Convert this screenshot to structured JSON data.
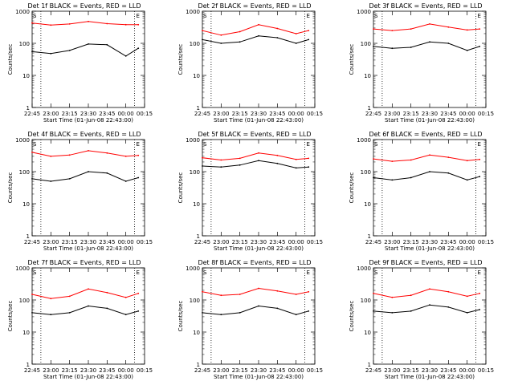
{
  "chart_data": [
    {
      "type": "line",
      "title": "Det 1f BLACK = Events, RED = LLD",
      "ylabel": "Counts/sec",
      "xlabel": "Start Time (01-Jun-08 22:43:00)",
      "ylim": [
        1,
        1000
      ],
      "yscale": "log",
      "yticks": [
        "1",
        "10",
        "100",
        "1000"
      ],
      "xticks": [
        "22:45",
        "23:00",
        "23:15",
        "23:30",
        "23:45",
        "00:00",
        "00:15"
      ],
      "markers": [
        "S",
        "E"
      ],
      "series": [
        {
          "name": "Events",
          "color": "#000000",
          "x": [
            "22:45",
            "23:00",
            "23:15",
            "23:30",
            "23:45",
            "00:00",
            "00:10"
          ],
          "values": [
            55,
            48,
            60,
            95,
            90,
            40,
            70
          ]
        },
        {
          "name": "LLD",
          "color": "#ff0000",
          "x": [
            "22:45",
            "23:00",
            "23:15",
            "23:30",
            "23:45",
            "00:00",
            "00:10"
          ],
          "values": [
            430,
            370,
            400,
            480,
            410,
            380,
            380
          ]
        }
      ]
    },
    {
      "type": "line",
      "title": "Det 2f BLACK = Events, RED = LLD",
      "ylabel": "Counts/sec",
      "xlabel": "Start Time (01-Jun-08 22:43:00)",
      "ylim": [
        1,
        1000
      ],
      "yscale": "log",
      "yticks": [
        "1",
        "10",
        "100",
        "1000"
      ],
      "xticks": [
        "22:45",
        "23:00",
        "23:15",
        "23:30",
        "23:45",
        "00:00",
        "00:15"
      ],
      "markers": [
        "S",
        "E"
      ],
      "series": [
        {
          "name": "Events",
          "color": "#000000",
          "x": [
            "22:45",
            "23:00",
            "23:15",
            "23:30",
            "23:45",
            "00:00",
            "00:10"
          ],
          "values": [
            130,
            100,
            110,
            170,
            150,
            100,
            130
          ]
        },
        {
          "name": "LLD",
          "color": "#ff0000",
          "x": [
            "22:45",
            "23:00",
            "23:15",
            "23:30",
            "23:45",
            "00:00",
            "00:10"
          ],
          "values": [
            250,
            180,
            230,
            380,
            290,
            200,
            250
          ]
        }
      ]
    },
    {
      "type": "line",
      "title": "Det 3f BLACK = Events, RED = LLD",
      "ylabel": "Counts/sec",
      "xlabel": "Start Time (01-Jun-08 22:43:00)",
      "ylim": [
        1,
        1000
      ],
      "yscale": "log",
      "yticks": [
        "1",
        "10",
        "100",
        "1000"
      ],
      "xticks": [
        "22:45",
        "23:00",
        "23:15",
        "23:30",
        "23:45",
        "00:00",
        "00:15"
      ],
      "markers": [
        "S",
        "E"
      ],
      "series": [
        {
          "name": "Events",
          "color": "#000000",
          "x": [
            "22:45",
            "23:00",
            "23:15",
            "23:30",
            "23:45",
            "00:00",
            "00:10"
          ],
          "values": [
            80,
            70,
            75,
            110,
            100,
            60,
            80
          ]
        },
        {
          "name": "LLD",
          "color": "#ff0000",
          "x": [
            "22:45",
            "23:00",
            "23:15",
            "23:30",
            "23:45",
            "00:00",
            "00:10"
          ],
          "values": [
            280,
            250,
            280,
            400,
            320,
            260,
            280
          ]
        }
      ]
    },
    {
      "type": "line",
      "title": "Det 4f BLACK = Events, RED = LLD",
      "ylabel": "Counts/sec",
      "xlabel": "Start Time (01-Jun-08 22:43:00)",
      "ylim": [
        1,
        1000
      ],
      "yscale": "log",
      "yticks": [
        "1",
        "10",
        "100",
        "1000"
      ],
      "xticks": [
        "22:45",
        "23:00",
        "23:15",
        "23:30",
        "23:45",
        "00:00",
        "00:15"
      ],
      "markers": [
        "S",
        "E"
      ],
      "series": [
        {
          "name": "Events",
          "color": "#000000",
          "x": [
            "22:45",
            "23:00",
            "23:15",
            "23:30",
            "23:45",
            "00:00",
            "00:10"
          ],
          "values": [
            60,
            50,
            60,
            100,
            90,
            50,
            65
          ]
        },
        {
          "name": "LLD",
          "color": "#ff0000",
          "x": [
            "22:45",
            "23:00",
            "23:15",
            "23:30",
            "23:45",
            "00:00",
            "00:10"
          ],
          "values": [
            400,
            300,
            330,
            450,
            380,
            300,
            320
          ]
        }
      ]
    },
    {
      "type": "line",
      "title": "Det 5f BLACK = Events, RED = LLD",
      "ylabel": "Counts/sec",
      "xlabel": "Start Time (01-Jun-08 22:43:00)",
      "ylim": [
        1,
        1000
      ],
      "yscale": "log",
      "yticks": [
        "1",
        "10",
        "100",
        "1000"
      ],
      "xticks": [
        "22:45",
        "23:00",
        "23:15",
        "23:30",
        "23:45",
        "00:00",
        "00:15"
      ],
      "markers": [
        "S",
        "E"
      ],
      "series": [
        {
          "name": "Events",
          "color": "#000000",
          "x": [
            "22:45",
            "23:00",
            "23:15",
            "23:30",
            "23:45",
            "00:00",
            "00:10"
          ],
          "values": [
            150,
            140,
            160,
            220,
            180,
            130,
            140
          ]
        },
        {
          "name": "LLD",
          "color": "#ff0000",
          "x": [
            "22:45",
            "23:00",
            "23:15",
            "23:30",
            "23:45",
            "00:00",
            "00:10"
          ],
          "values": [
            270,
            230,
            260,
            380,
            320,
            240,
            260
          ]
        }
      ]
    },
    {
      "type": "line",
      "title": "Det 6f BLACK = Events, RED = LLD",
      "ylabel": "Counts/sec",
      "xlabel": "Start Time (01-Jun-08 22:43:00)",
      "ylim": [
        1,
        1000
      ],
      "yscale": "log",
      "yticks": [
        "1",
        "10",
        "100",
        "1000"
      ],
      "xticks": [
        "22:45",
        "23:00",
        "23:15",
        "23:30",
        "23:45",
        "00:00",
        "00:15"
      ],
      "markers": [
        "S",
        "E"
      ],
      "series": [
        {
          "name": "Events",
          "color": "#000000",
          "x": [
            "22:45",
            "23:00",
            "23:15",
            "23:30",
            "23:45",
            "00:00",
            "00:10"
          ],
          "values": [
            65,
            55,
            65,
            100,
            90,
            55,
            70
          ]
        },
        {
          "name": "LLD",
          "color": "#ff0000",
          "x": [
            "22:45",
            "23:00",
            "23:15",
            "23:30",
            "23:45",
            "00:00",
            "00:10"
          ],
          "values": [
            250,
            210,
            230,
            330,
            280,
            220,
            240
          ]
        }
      ]
    },
    {
      "type": "line",
      "title": "Det 7f BLACK = Events, RED = LLD",
      "ylabel": "Counts/sec",
      "xlabel": "Start Time (01-Jun-08 22:43:00)",
      "ylim": [
        1,
        1000
      ],
      "yscale": "log",
      "yticks": [
        "1",
        "10",
        "100",
        "1000"
      ],
      "xticks": [
        "22:45",
        "23:00",
        "23:15",
        "23:30",
        "23:45",
        "00:00",
        "00:15"
      ],
      "markers": [
        "S",
        "E"
      ],
      "series": [
        {
          "name": "Events",
          "color": "#000000",
          "x": [
            "22:45",
            "23:00",
            "23:15",
            "23:30",
            "23:45",
            "00:00",
            "00:10"
          ],
          "values": [
            40,
            35,
            40,
            65,
            55,
            35,
            45
          ]
        },
        {
          "name": "LLD",
          "color": "#ff0000",
          "x": [
            "22:45",
            "23:00",
            "23:15",
            "23:30",
            "23:45",
            "00:00",
            "00:10"
          ],
          "values": [
            150,
            110,
            130,
            220,
            170,
            120,
            160
          ]
        }
      ]
    },
    {
      "type": "line",
      "title": "Det 8f BLACK = Events, RED = LLD",
      "ylabel": "Counts/sec",
      "xlabel": "Start Time (01-Jun-08 22:43:00)",
      "ylim": [
        1,
        1000
      ],
      "yscale": "log",
      "yticks": [
        "1",
        "10",
        "100",
        "1000"
      ],
      "xticks": [
        "22:45",
        "23:00",
        "23:15",
        "23:30",
        "23:45",
        "00:00",
        "00:15"
      ],
      "markers": [
        "S",
        "E"
      ],
      "series": [
        {
          "name": "Events",
          "color": "#000000",
          "x": [
            "22:45",
            "23:00",
            "23:15",
            "23:30",
            "23:45",
            "00:00",
            "00:10"
          ],
          "values": [
            40,
            35,
            40,
            65,
            55,
            35,
            45
          ]
        },
        {
          "name": "LLD",
          "color": "#ff0000",
          "x": [
            "22:45",
            "23:00",
            "23:15",
            "23:30",
            "23:45",
            "00:00",
            "00:10"
          ],
          "values": [
            180,
            140,
            150,
            230,
            190,
            150,
            180
          ]
        }
      ]
    },
    {
      "type": "line",
      "title": "Det 9f BLACK = Events, RED = LLD",
      "ylabel": "Counts/sec",
      "xlabel": "Start Time (01-Jun-08 22:43:00)",
      "ylim": [
        1,
        1000
      ],
      "yscale": "log",
      "yticks": [
        "1",
        "10",
        "100",
        "1000"
      ],
      "xticks": [
        "22:45",
        "23:00",
        "23:15",
        "23:30",
        "23:45",
        "00:00",
        "00:15"
      ],
      "markers": [
        "S",
        "E"
      ],
      "series": [
        {
          "name": "Events",
          "color": "#000000",
          "x": [
            "22:45",
            "23:00",
            "23:15",
            "23:30",
            "23:45",
            "00:00",
            "00:10"
          ],
          "values": [
            45,
            40,
            45,
            70,
            60,
            40,
            50
          ]
        },
        {
          "name": "LLD",
          "color": "#ff0000",
          "x": [
            "22:45",
            "23:00",
            "23:15",
            "23:30",
            "23:45",
            "00:00",
            "00:10"
          ],
          "values": [
            160,
            120,
            140,
            220,
            180,
            130,
            160
          ]
        }
      ]
    }
  ]
}
